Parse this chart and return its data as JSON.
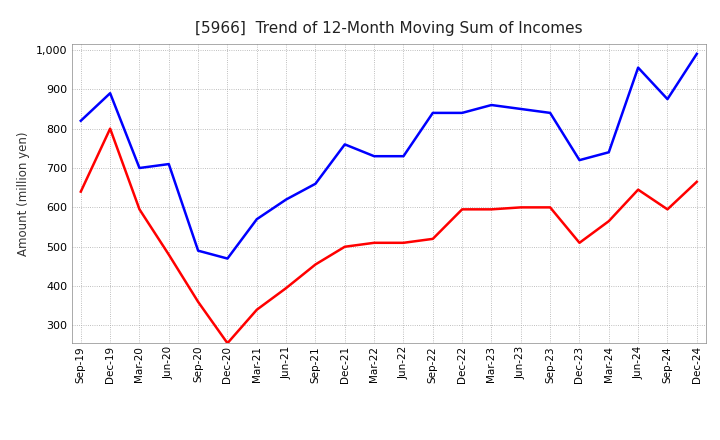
{
  "title": "[5966]  Trend of 12-Month Moving Sum of Incomes",
  "ylabel": "Amount (million yen)",
  "ylim": [
    255,
    1015
  ],
  "yticks": [
    300,
    400,
    500,
    600,
    700,
    800,
    900,
    1000
  ],
  "ordinary_income_color": "#0000FF",
  "net_income_color": "#FF0000",
  "background_color": "#FFFFFF",
  "grid_color": "#AAAAAA",
  "x_labels": [
    "Sep-19",
    "Dec-19",
    "Mar-20",
    "Jun-20",
    "Sep-20",
    "Dec-20",
    "Mar-21",
    "Jun-21",
    "Sep-21",
    "Dec-21",
    "Mar-22",
    "Jun-22",
    "Sep-22",
    "Dec-22",
    "Mar-23",
    "Jun-23",
    "Sep-23",
    "Dec-23",
    "Mar-24",
    "Jun-24",
    "Sep-24",
    "Dec-24"
  ],
  "ordinary_income": [
    820,
    890,
    700,
    710,
    490,
    470,
    570,
    620,
    660,
    760,
    730,
    730,
    840,
    840,
    860,
    850,
    840,
    720,
    740,
    955,
    875,
    990
  ],
  "net_income": [
    640,
    800,
    595,
    480,
    360,
    255,
    340,
    395,
    455,
    500,
    510,
    510,
    520,
    595,
    595,
    600,
    600,
    510,
    565,
    645,
    595,
    665
  ]
}
